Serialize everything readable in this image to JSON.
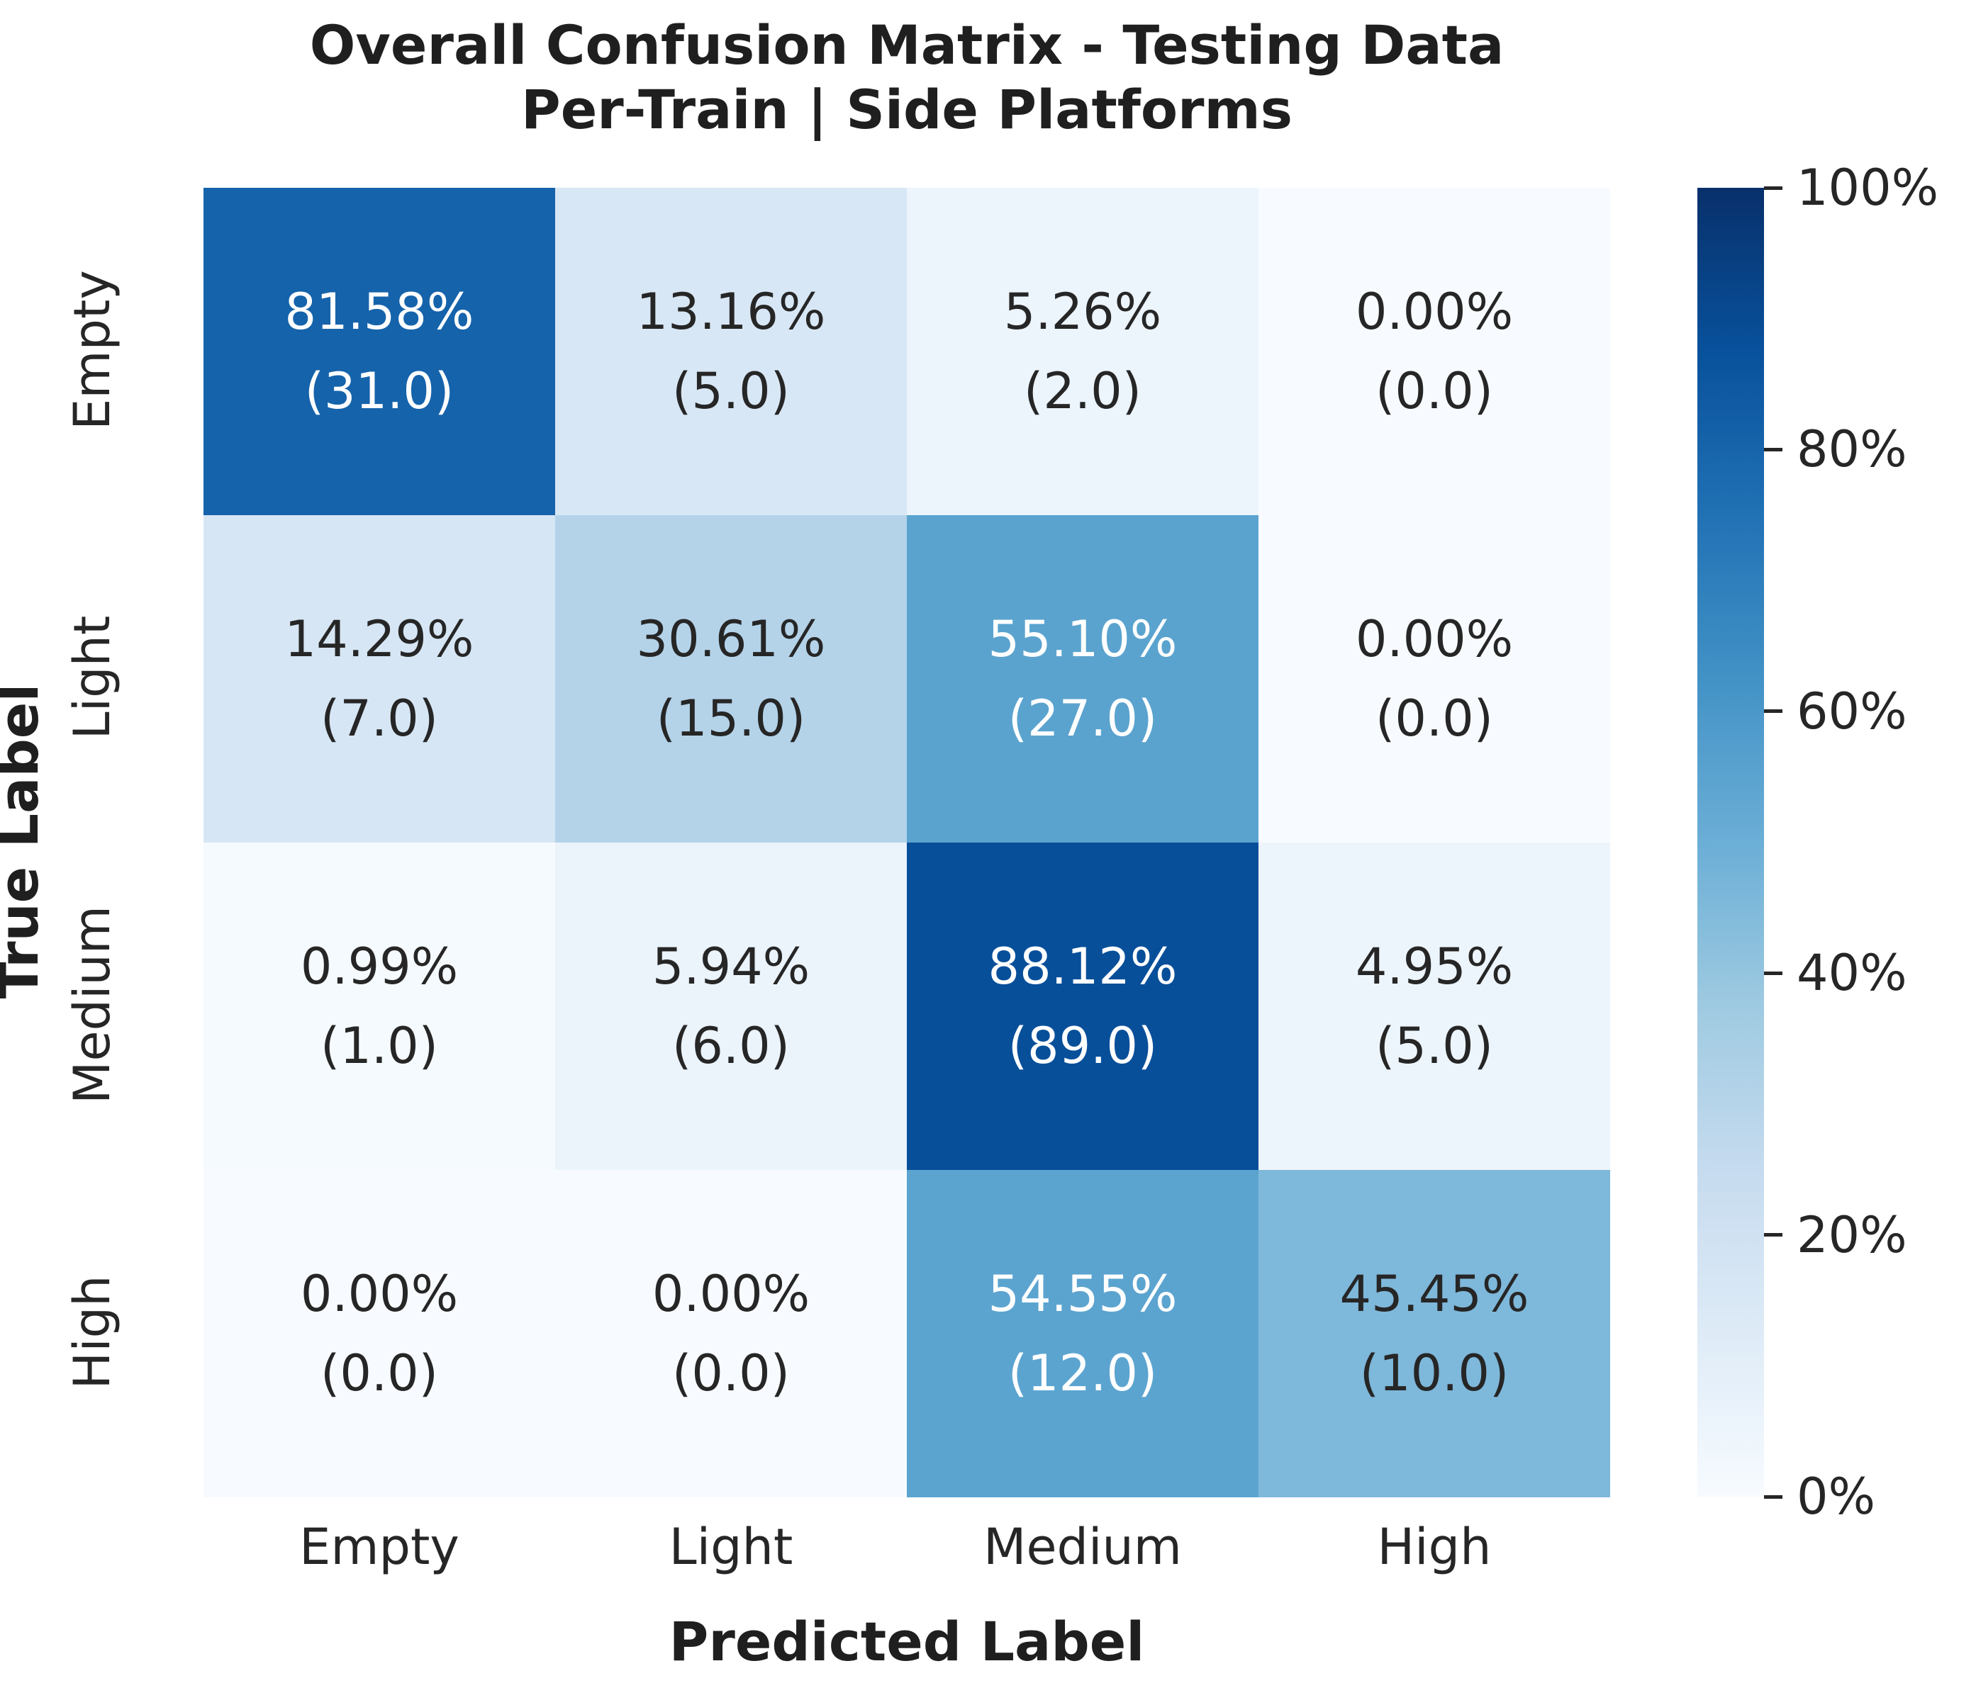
{
  "title": {
    "line1": "Overall Confusion Matrix - Testing Data",
    "line2": "Per-Train | Side Platforms"
  },
  "axes": {
    "y_label": "True Label",
    "x_label": "Predicted Label",
    "row_labels": [
      "Empty",
      "Light",
      "Medium",
      "High"
    ],
    "col_labels": [
      "Empty",
      "Light",
      "Medium",
      "High"
    ]
  },
  "matrix": {
    "cells": [
      {
        "pct": "81.58%",
        "count": "(31.0)",
        "bg": "#1563ab",
        "fg": "#ffffff"
      },
      {
        "pct": "13.16%",
        "count": "(5.0)",
        "bg": "#d8e7f5",
        "fg": "#262626"
      },
      {
        "pct": "5.26%",
        "count": "(2.0)",
        "bg": "#ecf4fc",
        "fg": "#262626"
      },
      {
        "pct": "0.00%",
        "count": "(0.0)",
        "bg": "#f7fbff",
        "fg": "#262626"
      },
      {
        "pct": "14.29%",
        "count": "(7.0)",
        "bg": "#d6e6f4",
        "fg": "#262626"
      },
      {
        "pct": "30.61%",
        "count": "(15.0)",
        "bg": "#b4d3e9",
        "fg": "#262626"
      },
      {
        "pct": "55.10%",
        "count": "(27.0)",
        "bg": "#5aa3cf",
        "fg": "#ffffff"
      },
      {
        "pct": "0.00%",
        "count": "(0.0)",
        "bg": "#f7fbff",
        "fg": "#262626"
      },
      {
        "pct": "0.99%",
        "count": "(1.0)",
        "bg": "#f5fafe",
        "fg": "#262626"
      },
      {
        "pct": "5.94%",
        "count": "(6.0)",
        "bg": "#ebf3fb",
        "fg": "#262626"
      },
      {
        "pct": "88.12%",
        "count": "(89.0)",
        "bg": "#084f9a",
        "fg": "#ffffff"
      },
      {
        "pct": "4.95%",
        "count": "(5.0)",
        "bg": "#edf5fc",
        "fg": "#262626"
      },
      {
        "pct": "0.00%",
        "count": "(0.0)",
        "bg": "#f7fbff",
        "fg": "#262626"
      },
      {
        "pct": "0.00%",
        "count": "(0.0)",
        "bg": "#f7fbff",
        "fg": "#262626"
      },
      {
        "pct": "54.55%",
        "count": "(12.0)",
        "bg": "#5ca4d0",
        "fg": "#ffffff"
      },
      {
        "pct": "45.45%",
        "count": "(10.0)",
        "bg": "#7eb8da",
        "fg": "#262626"
      }
    ]
  },
  "colorbar": {
    "colormap": "Blues",
    "min_color": "#f7fbff",
    "max_color": "#08306b",
    "ticks": [
      "100%",
      "80%",
      "60%",
      "40%",
      "20%",
      "0%"
    ]
  },
  "chart_data": {
    "type": "heatmap",
    "title": "Overall Confusion Matrix - Testing Data\nPer-Train | Side Platforms",
    "xlabel": "Predicted Label",
    "ylabel": "True Label",
    "x_categories": [
      "Empty",
      "Light",
      "Medium",
      "High"
    ],
    "y_categories": [
      "Empty",
      "Light",
      "Medium",
      "High"
    ],
    "values_percent": [
      [
        81.58,
        13.16,
        5.26,
        0.0
      ],
      [
        14.29,
        30.61,
        55.1,
        0.0
      ],
      [
        0.99,
        5.94,
        88.12,
        4.95
      ],
      [
        0.0,
        0.0,
        54.55,
        45.45
      ]
    ],
    "counts": [
      [
        31,
        5,
        2,
        0
      ],
      [
        7,
        15,
        27,
        0
      ],
      [
        1,
        6,
        89,
        5
      ],
      [
        0,
        0,
        12,
        10
      ]
    ],
    "colormap": "Blues",
    "colorbar_range": [
      0,
      100
    ],
    "colorbar_ticks": [
      "0%",
      "20%",
      "40%",
      "60%",
      "80%",
      "100%"
    ],
    "legend_position": "right",
    "grid": false
  }
}
